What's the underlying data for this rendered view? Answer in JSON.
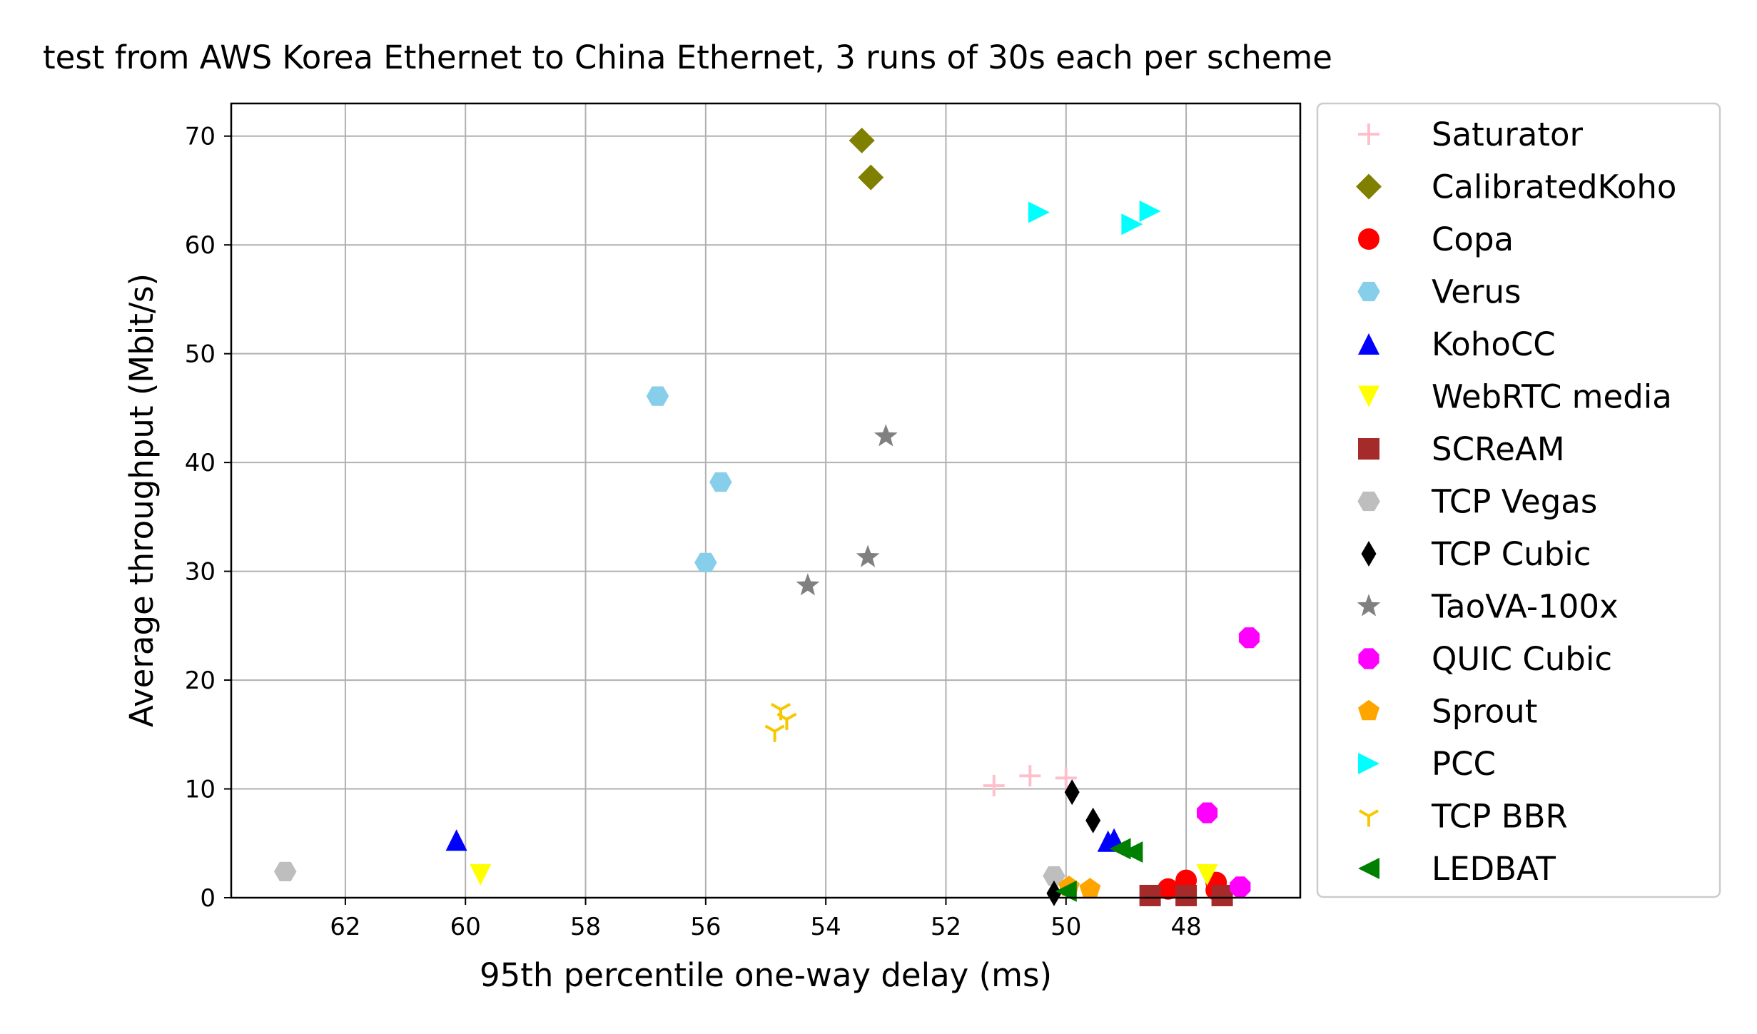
{
  "chart_data": {
    "type": "scatter",
    "title": "test from AWS Korea Ethernet to China Ethernet, 3 runs of 30s each per scheme",
    "xlabel": "95th percentile one-way delay (ms)",
    "ylabel": "Average throughput (Mbit/s)",
    "x_reversed": true,
    "xlim": [
      63.9,
      46.1
    ],
    "ylim": [
      0,
      73
    ],
    "xticks": [
      62,
      60,
      58,
      56,
      54,
      52,
      50,
      48
    ],
    "yticks": [
      0,
      10,
      20,
      30,
      40,
      50,
      60,
      70
    ],
    "grid": true,
    "legend_position": "outside right",
    "series": [
      {
        "name": "Saturator",
        "color": "#ffc0cb",
        "marker": "plus",
        "points": [
          [
            51.2,
            10.3
          ],
          [
            50.6,
            11.2
          ],
          [
            50.0,
            11.0
          ]
        ]
      },
      {
        "name": "CalibratedKoho",
        "color": "#808000",
        "marker": "diamond",
        "points": [
          [
            53.4,
            69.6
          ],
          [
            53.25,
            66.2
          ]
        ]
      },
      {
        "name": "Copa",
        "color": "#ff0000",
        "marker": "circle",
        "points": [
          [
            48.3,
            0.8
          ],
          [
            48.0,
            1.6
          ],
          [
            47.5,
            1.4
          ],
          [
            47.5,
            0.7
          ]
        ]
      },
      {
        "name": "Verus",
        "color": "#87ceeb",
        "marker": "hexagon",
        "points": [
          [
            56.8,
            46.1
          ],
          [
            55.75,
            38.2
          ],
          [
            56.0,
            30.8
          ]
        ]
      },
      {
        "name": "KohoCC",
        "color": "#0000ff",
        "marker": "triangle-up",
        "points": [
          [
            60.15,
            5.3
          ],
          [
            49.3,
            5.2
          ],
          [
            49.2,
            5.4
          ]
        ]
      },
      {
        "name": "WebRTC media",
        "color": "#ffff00",
        "marker": "triangle-down",
        "points": [
          [
            59.75,
            2.1
          ],
          [
            47.65,
            2.1
          ]
        ]
      },
      {
        "name": "SCReAM",
        "color": "#a52a2a",
        "marker": "square",
        "points": [
          [
            48.6,
            0.2
          ],
          [
            48.0,
            0.2
          ],
          [
            47.4,
            0.2
          ]
        ]
      },
      {
        "name": "TCP Vegas",
        "color": "#bebebe",
        "marker": "hexagon",
        "points": [
          [
            63.0,
            2.4
          ],
          [
            50.2,
            2.0
          ]
        ]
      },
      {
        "name": "TCP Cubic",
        "color": "#000000",
        "marker": "thin-diamond",
        "points": [
          [
            49.9,
            9.7
          ],
          [
            49.55,
            7.1
          ],
          [
            50.2,
            0.4
          ]
        ]
      },
      {
        "name": "TaoVA-100x",
        "color": "#808080",
        "marker": "star",
        "points": [
          [
            53.0,
            42.4
          ],
          [
            53.3,
            31.3
          ],
          [
            54.3,
            28.7
          ]
        ]
      },
      {
        "name": "QUIC Cubic",
        "color": "#ff00ff",
        "marker": "octagon",
        "points": [
          [
            46.95,
            23.9
          ],
          [
            47.65,
            7.8
          ],
          [
            47.1,
            1.0
          ]
        ]
      },
      {
        "name": "Sprout",
        "color": "#ffa500",
        "marker": "pentagon",
        "points": [
          [
            49.95,
            1.0
          ],
          [
            49.6,
            0.8
          ]
        ]
      },
      {
        "name": "PCC",
        "color": "#00ffff",
        "marker": "triangle-right",
        "points": [
          [
            50.45,
            63.0
          ],
          [
            48.9,
            61.9
          ],
          [
            48.6,
            63.1
          ]
        ]
      },
      {
        "name": "TCP BBR",
        "color": "#f5c800",
        "marker": "tri",
        "points": [
          [
            54.75,
            17.3
          ],
          [
            54.65,
            16.4
          ],
          [
            54.85,
            15.3
          ]
        ]
      },
      {
        "name": "LEDBAT",
        "color": "#008000",
        "marker": "triangle-left",
        "points": [
          [
            49.1,
            4.5
          ],
          [
            48.9,
            4.2
          ],
          [
            50.0,
            0.6
          ]
        ]
      }
    ]
  }
}
